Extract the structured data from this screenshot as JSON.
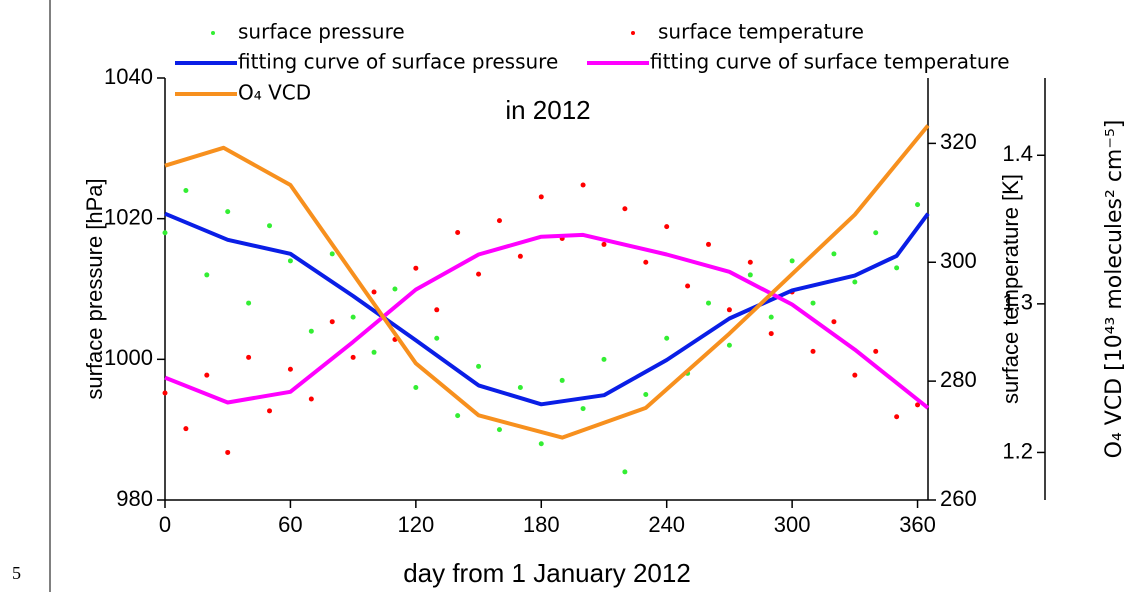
{
  "page_number": "5",
  "chart_data": {
    "type": "line",
    "title": "in 2012",
    "xlabel": "day from 1 January 2012",
    "ylabel": "surface pressure [hPa]",
    "y2label": "surface temperature [K]",
    "y3label": "O₄ VCD [10⁴³ molecules² cm⁻⁵]",
    "xlim": [
      0,
      365
    ],
    "xticks": [
      0,
      60,
      120,
      180,
      240,
      300,
      360
    ],
    "ylim": [
      980,
      1040
    ],
    "yticks": [
      980,
      1000,
      1020,
      1040
    ],
    "y2lim": [
      260,
      331
    ],
    "y2ticks": [
      260,
      280,
      300,
      320
    ],
    "y3lim": [
      1.168,
      1.452
    ],
    "y3ticks": [
      1.2,
      1.3,
      1.4
    ],
    "series": [
      {
        "name": "surface pressure",
        "type": "scatter",
        "color": "#33ee33",
        "x": [
          0,
          10,
          20,
          30,
          40,
          50,
          60,
          70,
          80,
          90,
          100,
          110,
          120,
          130,
          140,
          150,
          160,
          170,
          180,
          190,
          200,
          210,
          220,
          230,
          240,
          250,
          260,
          270,
          280,
          290,
          300,
          310,
          320,
          330,
          340,
          350,
          360
        ],
        "values": [
          1018,
          1024,
          1012,
          1021,
          1008,
          1019,
          1014,
          1004,
          1015,
          1006,
          1001,
          1010,
          996,
          1003,
          992,
          999,
          990,
          996,
          988,
          997,
          993,
          1000,
          984,
          995,
          1003,
          998,
          1008,
          1002,
          1012,
          1006,
          1014,
          1008,
          1015,
          1011,
          1018,
          1013,
          1022
        ]
      },
      {
        "name": "surface temperature",
        "type": "scatter",
        "color": "#ff0000",
        "axis": "y2",
        "x": [
          0,
          10,
          20,
          30,
          40,
          50,
          60,
          70,
          80,
          90,
          100,
          110,
          120,
          130,
          140,
          150,
          160,
          170,
          180,
          190,
          200,
          210,
          220,
          230,
          240,
          250,
          260,
          270,
          280,
          290,
          300,
          310,
          320,
          330,
          340,
          350,
          360
        ],
        "values": [
          278,
          272,
          281,
          268,
          284,
          275,
          282,
          277,
          290,
          284,
          295,
          287,
          299,
          292,
          305,
          298,
          307,
          301,
          311,
          304,
          313,
          303,
          309,
          300,
          306,
          296,
          303,
          292,
          300,
          288,
          295,
          285,
          290,
          281,
          285,
          274,
          276
        ]
      },
      {
        "name": "fitting curve of surface pressure",
        "type": "line",
        "color": "#0a1ee6",
        "x": [
          0,
          30,
          60,
          90,
          120,
          150,
          180,
          210,
          240,
          270,
          300,
          330,
          350,
          365
        ],
        "values": [
          1020.7,
          1017,
          1015,
          1009,
          1002.7,
          996.3,
          993.6,
          994.9,
          999.9,
          1005.8,
          1009.8,
          1011.9,
          1014.7,
          1020.7
        ]
      },
      {
        "name": "fitting curve of surface temperature",
        "type": "line",
        "color": "#ff00ff",
        "axis": "y2",
        "x": [
          0,
          30,
          60,
          90,
          120,
          150,
          180,
          200,
          240,
          270,
          300,
          330,
          365
        ],
        "values": [
          280.6,
          276.4,
          278.2,
          286.6,
          295.4,
          301.3,
          304.3,
          304.6,
          301.3,
          298.4,
          292.9,
          285.3,
          275.5
        ]
      },
      {
        "name": "O₄ VCD",
        "type": "line",
        "color": "#f7901e",
        "axis": "y3",
        "x": [
          0,
          28,
          60,
          90,
          120,
          150,
          190,
          230,
          270,
          300,
          330,
          365
        ],
        "values": [
          1.393,
          1.405,
          1.38,
          1.32,
          1.26,
          1.225,
          1.21,
          1.23,
          1.28,
          1.32,
          1.36,
          1.42
        ]
      }
    ]
  }
}
